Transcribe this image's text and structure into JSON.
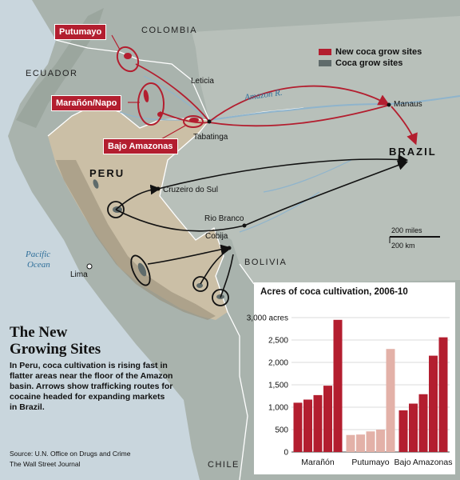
{
  "map": {
    "countries": {
      "colombia": "COLOMBIA",
      "ecuador": "ECUADOR",
      "peru": "PERU",
      "brazil": "BRAZIL",
      "bolivia": "BOLIVIA",
      "chile": "CHILE"
    },
    "cities": {
      "leticia": "Leticia",
      "tabatinga": "Tabatinga",
      "manaus": "Manaus",
      "cruzeiro": "Cruzeiro do Sul",
      "rio_branco": "Rio Branco",
      "cobija": "Cobija",
      "lima": "Lima"
    },
    "water": {
      "amazon": "Amazon R.",
      "pacific_line1": "Pacific",
      "pacific_line2": "Ocean"
    },
    "regions": {
      "putumayo": "Putumayo",
      "maranon": "Marañón/Napo",
      "bajo": "Bajo Amazonas"
    },
    "legend": {
      "new_sites": "New coca grow sites",
      "coca_sites": "Coca grow sites"
    },
    "scale": {
      "miles": "200 miles",
      "km": "200 km"
    },
    "colors": {
      "red": "#b31e2f",
      "grey": "#5f6b6b",
      "land": "#a9b3ad",
      "peru": "#cbbfa6"
    }
  },
  "headline": {
    "title_line1": "The New",
    "title_line2": "Growing Sites",
    "description": "In Peru, coca cultivation is rising fast in flatter areas near the floor of the Amazon basin. Arrows show trafficking routes for cocaine headed for expanding markets in Brazil.",
    "source_line1": "Source: U.N. Office on Drugs and Crime",
    "source_line2": "The Wall Street Journal"
  },
  "chart_title": "Acres of coca cultivation, 2006-10",
  "chart_data": {
    "type": "bar",
    "title": "Acres of coca cultivation, 2006-10",
    "ylim": [
      0,
      3000
    ],
    "yticks": [
      "3,000 acres",
      "2,500",
      "2,000",
      "1,500",
      "1,000",
      "500",
      "0"
    ],
    "groups": [
      {
        "label": "Marañón",
        "values": [
          1100,
          1170,
          1270,
          1480,
          2950
        ],
        "color": "#b31e2f"
      },
      {
        "label": "Putumayo",
        "values": [
          380,
          390,
          460,
          500,
          2300
        ],
        "color": "#e3b1a8"
      },
      {
        "label": "Bajo Amazonas",
        "values": [
          930,
          1080,
          1290,
          2150,
          2560
        ],
        "color": "#b31e2f"
      }
    ],
    "grid": true
  }
}
